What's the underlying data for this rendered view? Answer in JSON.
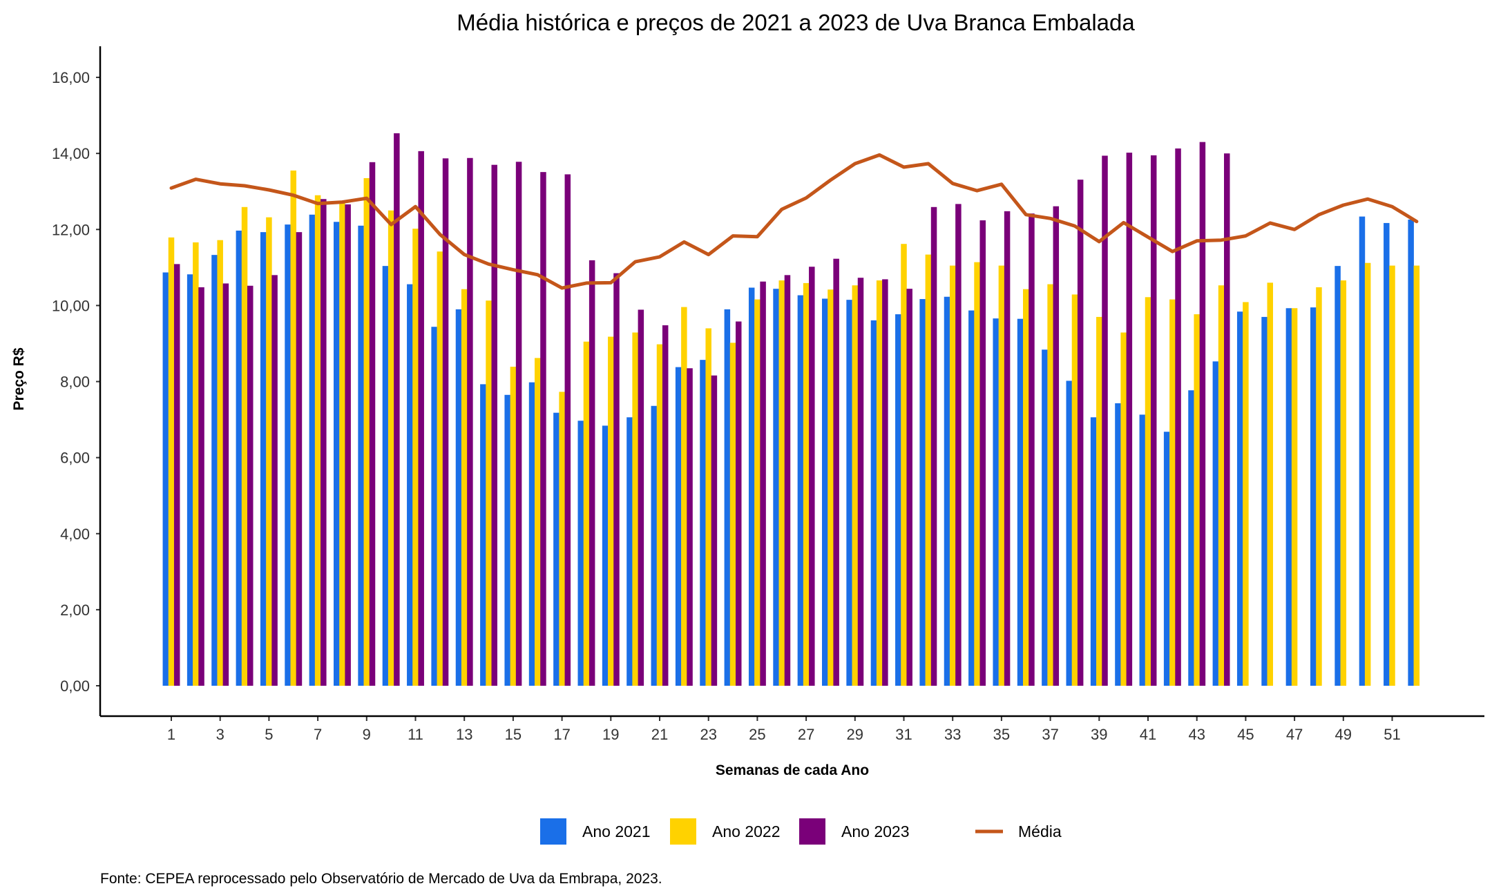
{
  "chart_data": {
    "type": "bar",
    "title": "Média histórica e preços de 2021 a 2023 de Uva Branca Embalada",
    "xlabel": "Semanas de cada Ano",
    "ylabel": "Preço R$",
    "ylim": [
      0,
      16
    ],
    "yticks": [
      "0,00",
      "2,00",
      "4,00",
      "6,00",
      "8,00",
      "10,00",
      "12,00",
      "14,00",
      "16,00"
    ],
    "xticks": [
      "1",
      "3",
      "5",
      "7",
      "9",
      "11",
      "13",
      "15",
      "17",
      "19",
      "21",
      "23",
      "25",
      "27",
      "29",
      "31",
      "33",
      "35",
      "37",
      "39",
      "41",
      "43",
      "45",
      "47",
      "49",
      "51"
    ],
    "categories": [
      1,
      2,
      3,
      4,
      5,
      6,
      7,
      8,
      9,
      10,
      11,
      12,
      13,
      14,
      15,
      16,
      17,
      18,
      19,
      20,
      21,
      22,
      23,
      24,
      25,
      26,
      27,
      28,
      29,
      30,
      31,
      32,
      33,
      34,
      35,
      36,
      37,
      38,
      39,
      40,
      41,
      42,
      43,
      44,
      45,
      46,
      47,
      48,
      49,
      50,
      51,
      52
    ],
    "grid": false,
    "legend_position": "bottom",
    "series": [
      {
        "name": "Ano 2021",
        "kind": "bar",
        "color": "#1a6fe8",
        "values": [
          10.87,
          10.82,
          11.33,
          11.97,
          11.93,
          12.13,
          12.39,
          12.2,
          12.1,
          11.04,
          10.56,
          9.44,
          9.9,
          7.93,
          7.65,
          7.98,
          7.18,
          6.97,
          6.84,
          7.06,
          7.36,
          8.38,
          8.57,
          9.9,
          10.47,
          10.44,
          10.27,
          10.18,
          10.15,
          9.61,
          9.77,
          10.17,
          10.23,
          9.87,
          9.66,
          9.65,
          8.84,
          8.02,
          7.06,
          7.43,
          7.13,
          6.68,
          7.77,
          8.53,
          9.84,
          9.7,
          9.93,
          9.95,
          11.04,
          12.34,
          12.17,
          12.26
        ]
      },
      {
        "name": "Ano 2022",
        "kind": "bar",
        "color": "#ffd200",
        "values": [
          11.79,
          11.66,
          11.72,
          12.59,
          12.32,
          13.55,
          12.9,
          12.73,
          13.35,
          12.5,
          12.02,
          11.42,
          10.43,
          10.13,
          8.39,
          8.62,
          7.73,
          9.05,
          9.18,
          9.29,
          8.98,
          9.96,
          9.4,
          9.02,
          10.16,
          10.66,
          10.59,
          10.42,
          10.53,
          10.66,
          11.62,
          11.34,
          11.05,
          11.14,
          11.05,
          10.43,
          10.56,
          10.29,
          9.7,
          9.29,
          10.22,
          10.16,
          9.77,
          10.53,
          10.09,
          10.6,
          9.93,
          10.48,
          10.66,
          11.12,
          11.05,
          11.05
        ]
      },
      {
        "name": "Ano 2023",
        "kind": "bar",
        "color": "#7a0079",
        "values": [
          11.09,
          10.48,
          10.58,
          10.52,
          10.8,
          11.93,
          12.8,
          12.66,
          13.77,
          14.53,
          14.06,
          13.87,
          13.88,
          13.7,
          13.78,
          13.51,
          13.45,
          11.19,
          10.85,
          9.89,
          9.48,
          8.35,
          8.16,
          9.58,
          10.63,
          10.8,
          11.02,
          11.23,
          10.73,
          10.69,
          10.44,
          12.59,
          12.67,
          12.24,
          12.48,
          12.42,
          12.61,
          13.31,
          13.94,
          14.02,
          13.95,
          14.13,
          14.3,
          14.0,
          null,
          null,
          null,
          null,
          null,
          null,
          null,
          null
        ]
      },
      {
        "name": "Média",
        "kind": "line",
        "color": "#c4561a",
        "values": [
          13.09,
          13.32,
          13.2,
          13.15,
          13.04,
          12.9,
          12.68,
          12.72,
          12.82,
          12.13,
          12.6,
          11.87,
          11.34,
          11.09,
          10.94,
          10.81,
          10.46,
          10.59,
          10.6,
          11.15,
          11.28,
          11.67,
          11.34,
          11.83,
          11.81,
          12.53,
          12.83,
          13.3,
          13.73,
          13.96,
          13.64,
          13.73,
          13.21,
          13.02,
          13.19,
          12.39,
          12.29,
          12.09,
          11.68,
          12.18,
          11.8,
          11.42,
          11.7,
          11.72,
          11.83,
          12.17,
          12.0,
          12.39,
          12.64,
          12.8,
          12.6,
          12.21
        ]
      }
    ],
    "caption": "Fonte: CEPEA reprocessado pelo Observatório de Mercado de Uva da Embrapa, 2023."
  }
}
